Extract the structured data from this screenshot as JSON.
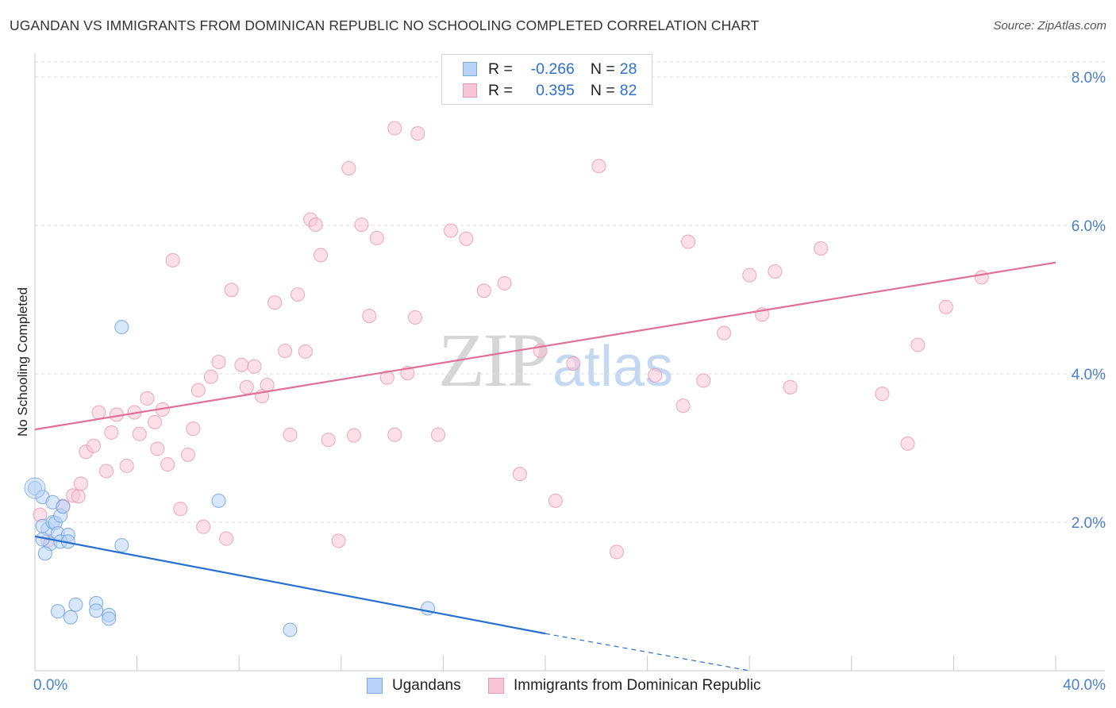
{
  "header": {
    "title": "UGANDAN VS IMMIGRANTS FROM DOMINICAN REPUBLIC NO SCHOOLING COMPLETED CORRELATION CHART",
    "source": "Source: ZipAtlas.com"
  },
  "watermark": {
    "zip": "ZIP",
    "atlas": "atlas"
  },
  "legend": {
    "rows": [
      {
        "r_label": "R =",
        "r_value": "-0.266",
        "n_label": "N =",
        "n_value": "28",
        "fill": "#b8d3f5",
        "stroke": "#7fa8e0"
      },
      {
        "r_label": "R =",
        "r_value": "0.395",
        "n_label": "N =",
        "n_value": "82",
        "fill": "#f8c6d6",
        "stroke": "#e99ab5"
      }
    ]
  },
  "bottom_legend": {
    "series_a": "Ugandans",
    "series_b": "Immigrants from Dominican Republic"
  },
  "chart_data": {
    "type": "scatter",
    "title": "UGANDAN VS IMMIGRANTS FROM DOMINICAN REPUBLIC NO SCHOOLING COMPLETED CORRELATION CHART",
    "xlabel": "",
    "ylabel": "No Schooling Completed",
    "xlim": [
      0,
      40
    ],
    "ylim": [
      0,
      8.0
    ],
    "x_tick_labels": [
      "0.0%",
      "40.0%"
    ],
    "y_ticks": [
      2.0,
      4.0,
      6.0,
      8.0
    ],
    "y_tick_labels": [
      "2.0%",
      "4.0%",
      "6.0%",
      "8.0%"
    ],
    "grid": true,
    "legend_position": "top-center",
    "series": [
      {
        "name": "Ugandans",
        "color": "#6fa0e0",
        "fill": "#b8d3f5",
        "line_color": "#2a6fcf",
        "trend": {
          "x0": 0,
          "y0": 1.81,
          "x1": 20,
          "y1": 0.5,
          "dashed_to_x": 28,
          "dashed_to_y": 0.0
        },
        "points": [
          [
            0.0,
            2.46
          ],
          [
            0.3,
            2.34
          ],
          [
            0.7,
            2.27
          ],
          [
            0.5,
            1.91
          ],
          [
            0.3,
            1.95
          ],
          [
            0.7,
            2.0
          ],
          [
            0.8,
            1.99
          ],
          [
            0.9,
            1.85
          ],
          [
            0.6,
            1.71
          ],
          [
            0.4,
            1.58
          ],
          [
            1.0,
            2.09
          ],
          [
            1.1,
            2.21
          ],
          [
            1.3,
            1.83
          ],
          [
            1.0,
            1.74
          ],
          [
            1.3,
            1.74
          ],
          [
            3.4,
            4.63
          ],
          [
            7.2,
            2.29
          ],
          [
            3.4,
            1.69
          ],
          [
            0.9,
            0.8
          ],
          [
            1.4,
            0.72
          ],
          [
            1.6,
            0.89
          ],
          [
            2.4,
            0.91
          ],
          [
            2.4,
            0.81
          ],
          [
            2.9,
            0.75
          ],
          [
            2.9,
            0.7
          ],
          [
            15.4,
            0.84
          ],
          [
            10.0,
            0.55
          ],
          [
            0.3,
            1.77
          ]
        ]
      },
      {
        "name": "Immigrants from Dominican Republic",
        "color": "#e99ab5",
        "fill": "#f8c6d6",
        "line_color": "#e07099",
        "trend": {
          "x0": 0,
          "y0": 3.25,
          "x1": 40,
          "y1": 5.5
        },
        "points": [
          [
            0.2,
            2.1
          ],
          [
            0.5,
            1.75
          ],
          [
            1.1,
            2.22
          ],
          [
            1.5,
            2.36
          ],
          [
            1.7,
            2.35
          ],
          [
            1.8,
            2.52
          ],
          [
            2.0,
            2.95
          ],
          [
            2.3,
            3.03
          ],
          [
            2.5,
            3.48
          ],
          [
            2.8,
            2.69
          ],
          [
            3.0,
            3.21
          ],
          [
            3.2,
            3.45
          ],
          [
            3.6,
            2.76
          ],
          [
            3.9,
            3.48
          ],
          [
            4.1,
            3.19
          ],
          [
            4.4,
            3.67
          ],
          [
            4.7,
            3.35
          ],
          [
            5.0,
            3.52
          ],
          [
            5.2,
            2.78
          ],
          [
            5.4,
            5.53
          ],
          [
            5.7,
            2.18
          ],
          [
            6.0,
            2.91
          ],
          [
            6.2,
            3.26
          ],
          [
            6.4,
            3.78
          ],
          [
            6.6,
            1.94
          ],
          [
            6.9,
            3.96
          ],
          [
            7.2,
            4.16
          ],
          [
            7.5,
            1.78
          ],
          [
            7.7,
            5.13
          ],
          [
            8.1,
            4.12
          ],
          [
            8.3,
            3.82
          ],
          [
            8.6,
            4.1
          ],
          [
            8.9,
            3.7
          ],
          [
            9.1,
            3.85
          ],
          [
            9.4,
            4.96
          ],
          [
            9.8,
            4.31
          ],
          [
            10.0,
            3.18
          ],
          [
            10.3,
            5.07
          ],
          [
            10.6,
            4.3
          ],
          [
            10.8,
            6.08
          ],
          [
            11.0,
            6.01
          ],
          [
            11.2,
            5.6
          ],
          [
            11.5,
            3.11
          ],
          [
            11.9,
            1.75
          ],
          [
            12.3,
            6.77
          ],
          [
            12.5,
            3.17
          ],
          [
            12.8,
            6.01
          ],
          [
            13.1,
            4.78
          ],
          [
            13.4,
            5.83
          ],
          [
            13.8,
            3.95
          ],
          [
            14.1,
            3.18
          ],
          [
            14.6,
            4.01
          ],
          [
            14.9,
            4.76
          ],
          [
            14.1,
            7.31
          ],
          [
            15.0,
            7.24
          ],
          [
            15.8,
            3.18
          ],
          [
            16.3,
            5.93
          ],
          [
            16.9,
            5.82
          ],
          [
            17.6,
            5.12
          ],
          [
            18.4,
            5.22
          ],
          [
            19.0,
            2.65
          ],
          [
            19.8,
            4.31
          ],
          [
            20.4,
            2.29
          ],
          [
            21.1,
            4.14
          ],
          [
            22.1,
            6.8
          ],
          [
            22.8,
            1.6
          ],
          [
            24.3,
            3.98
          ],
          [
            25.4,
            3.57
          ],
          [
            25.6,
            5.78
          ],
          [
            26.2,
            3.91
          ],
          [
            27.0,
            4.55
          ],
          [
            28.0,
            5.33
          ],
          [
            28.5,
            4.8
          ],
          [
            29.0,
            5.38
          ],
          [
            29.6,
            3.82
          ],
          [
            30.8,
            5.69
          ],
          [
            33.2,
            3.73
          ],
          [
            34.2,
            3.06
          ],
          [
            34.6,
            4.39
          ],
          [
            35.7,
            4.9
          ],
          [
            37.1,
            5.3
          ],
          [
            4.8,
            2.99
          ]
        ]
      }
    ]
  }
}
